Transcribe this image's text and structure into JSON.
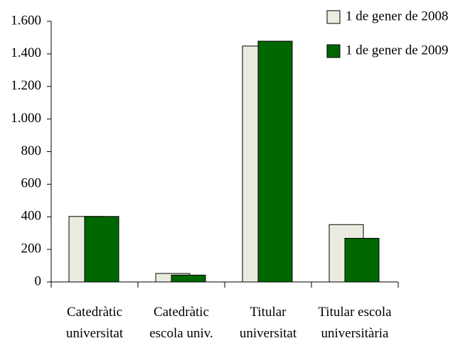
{
  "chart_data": {
    "type": "bar",
    "categories": [
      "Catedràtic universitat",
      "Catedràtic escola univ.",
      "Titular universitat",
      "Titular escola universitària"
    ],
    "series": [
      {
        "name": "1 de gener de 2008",
        "color": "#ebebe0",
        "values": [
          402,
          52,
          1448,
          352
        ]
      },
      {
        "name": "1 de gener de 2009",
        "color": "#006600",
        "values": [
          402,
          42,
          1478,
          268
        ]
      }
    ],
    "ylim": [
      0,
      1600
    ],
    "yticks": [
      0,
      200,
      400,
      600,
      800,
      {
        "value": 1000,
        "label": "1.000"
      },
      {
        "value": 1200,
        "label": "1.200"
      },
      {
        "value": 1400,
        "label": "1.400"
      },
      {
        "value": 1600,
        "label": "1.600"
      }
    ],
    "grid": false,
    "legend": "top-right"
  }
}
